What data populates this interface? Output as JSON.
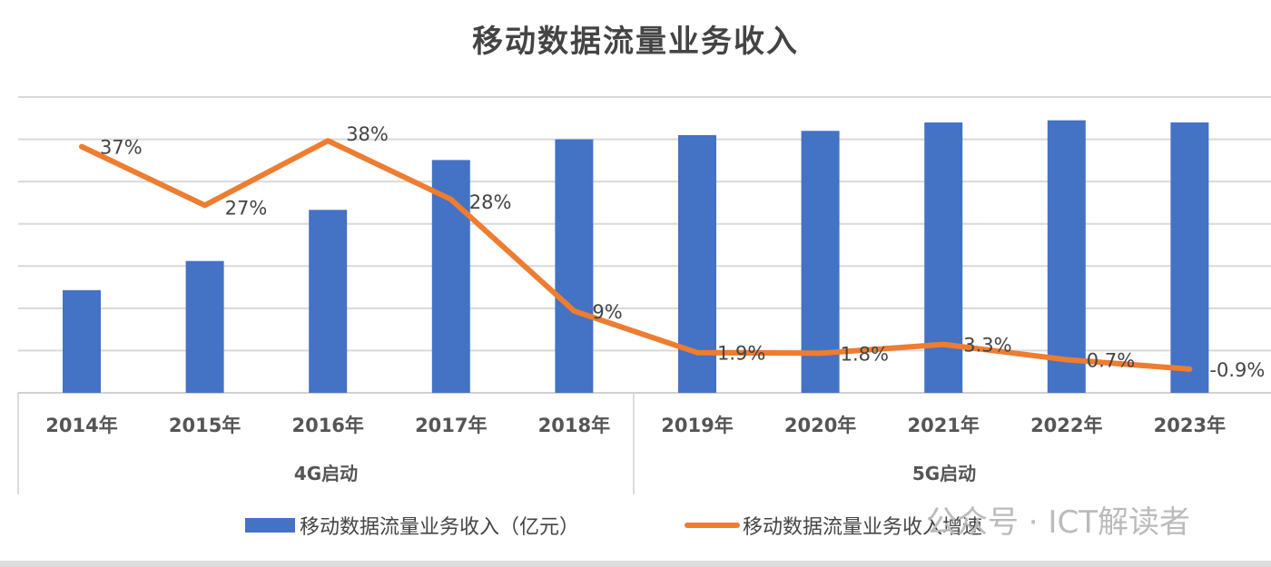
{
  "chart_data": {
    "type": "bar+line",
    "title": "移动数据流量业务收入",
    "categories": [
      "2014年",
      "2015年",
      "2016年",
      "2017年",
      "2018年",
      "2019年",
      "2020年",
      "2021年",
      "2022年",
      "2023年"
    ],
    "groups": [
      {
        "label": "4G启动",
        "categories": [
          "2014年",
          "2015年",
          "2016年",
          "2017年",
          "2018年"
        ]
      },
      {
        "label": "5G启动",
        "categories": [
          "2019年",
          "2020年",
          "2021年",
          "2022年",
          "2023年"
        ]
      }
    ],
    "series": [
      {
        "name": "移动数据流量业务收入（亿元）",
        "type": "bar",
        "color": "#4472C4",
        "values": [
          2430,
          3120,
          4330,
          5510,
          6000,
          6100,
          6200,
          6400,
          6450,
          6400
        ]
      },
      {
        "name": "移动数据流量业务收入增速",
        "type": "line",
        "color": "#ED7D31",
        "values": [
          37,
          27,
          38,
          28,
          9,
          1.9,
          1.8,
          3.3,
          0.7,
          -0.9
        ],
        "labels": [
          "37%",
          "27%",
          "38%",
          "28%",
          "9%",
          "1.9%",
          "1.8%",
          "3.3%",
          "0.7%",
          "-0.9%"
        ]
      }
    ],
    "ylim": [
      0,
      7000
    ],
    "y2lim": [
      -1.5,
      50
    ],
    "grid": true,
    "y_tick_labels_shown": false,
    "legend": "bottom"
  },
  "watermark": "公众号 · ICT解读者"
}
